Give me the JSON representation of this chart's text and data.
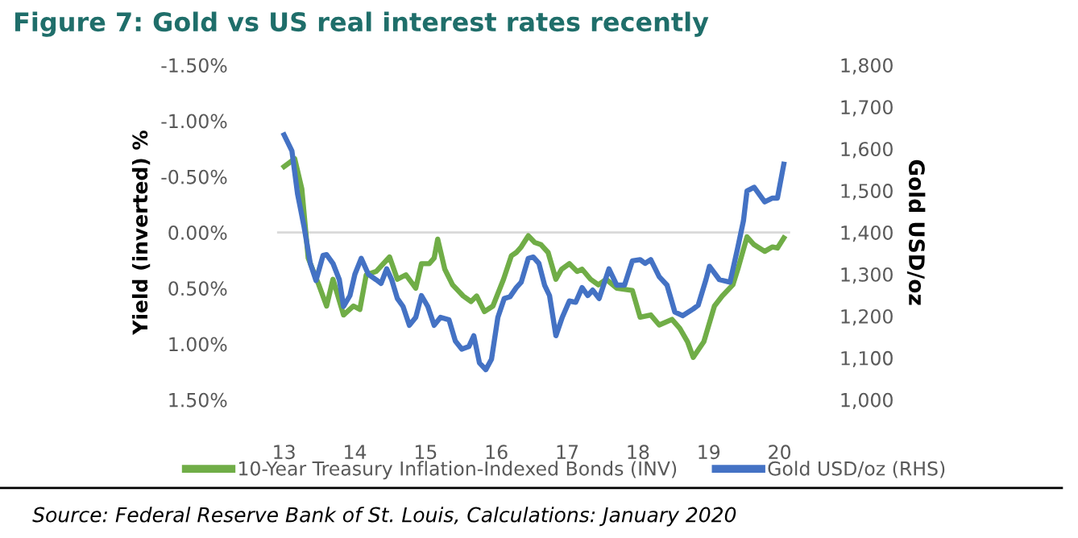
{
  "chart_data": {
    "type": "line",
    "title": "Figure 7: Gold vs US real interest rates recently",
    "ylabel": "Yield (inverted) %",
    "y2label": "Gold USD/oz",
    "annotations": [
      "Source: Federal Reserve Bank of St. Louis, Calculations: January 2020"
    ],
    "series": [
      {
        "name": "10-Year Treasury Inflation-Indexed Bonds (INV)",
        "color": "#70ad47",
        "x": [
          13.0,
          13.15,
          13.25,
          13.34,
          13.49,
          13.6,
          13.69,
          13.84,
          13.98,
          14.07,
          14.16,
          14.3,
          14.49,
          14.6,
          14.72,
          14.86,
          14.94,
          15.05,
          15.12,
          15.17,
          15.27,
          15.38,
          15.53,
          15.64,
          15.72,
          15.83,
          15.95,
          16.1,
          16.21,
          16.28,
          16.35,
          16.45,
          16.54,
          16.63,
          16.73,
          16.84,
          16.92,
          17.03,
          17.14,
          17.21,
          17.33,
          17.44,
          17.55,
          17.7,
          17.92,
          18.03,
          18.18,
          18.3,
          18.48,
          18.59,
          18.7,
          18.78,
          18.93,
          19.08,
          19.19,
          19.34,
          19.41,
          19.54,
          19.64,
          19.79,
          19.9,
          19.97,
          20.06
        ],
        "values": [
          -0.59,
          -0.66,
          -0.39,
          0.23,
          0.47,
          0.66,
          0.42,
          0.74,
          0.66,
          0.69,
          0.38,
          0.35,
          0.22,
          0.42,
          0.38,
          0.5,
          0.28,
          0.28,
          0.23,
          0.06,
          0.33,
          0.47,
          0.57,
          0.62,
          0.57,
          0.71,
          0.66,
          0.42,
          0.21,
          0.18,
          0.13,
          0.03,
          0.09,
          0.11,
          0.18,
          0.42,
          0.33,
          0.28,
          0.35,
          0.33,
          0.42,
          0.47,
          0.42,
          0.5,
          0.52,
          0.76,
          0.74,
          0.83,
          0.78,
          0.86,
          0.98,
          1.12,
          0.98,
          0.66,
          0.57,
          0.47,
          0.33,
          0.04,
          0.11,
          0.17,
          0.13,
          0.14,
          0.05
        ]
      },
      {
        "name": "Gold USD/oz (RHS)",
        "color": "#4472c4",
        "axis": "y2",
        "x": [
          13.0,
          13.11,
          13.19,
          13.28,
          13.37,
          13.45,
          13.55,
          13.6,
          13.69,
          13.78,
          13.84,
          13.93,
          14.0,
          14.09,
          14.19,
          14.3,
          14.37,
          14.45,
          14.52,
          14.6,
          14.68,
          14.77,
          14.86,
          14.94,
          15.03,
          15.12,
          15.21,
          15.33,
          15.42,
          15.51,
          15.61,
          15.68,
          15.76,
          15.85,
          15.93,
          16.02,
          16.11,
          16.19,
          16.28,
          16.35,
          16.45,
          16.52,
          16.6,
          16.68,
          16.75,
          16.84,
          16.93,
          17.03,
          17.12,
          17.21,
          17.29,
          17.36,
          17.45,
          17.59,
          17.7,
          17.81,
          17.92,
          18.03,
          18.1,
          18.18,
          18.3,
          18.41,
          18.52,
          18.63,
          18.78,
          18.85,
          18.96,
          19.01,
          19.15,
          19.3,
          19.41,
          19.49,
          19.54,
          19.64,
          19.79,
          19.9,
          19.97,
          20.06
        ],
        "values": [
          1633,
          1595,
          1492,
          1415,
          1326,
          1285,
          1345,
          1347,
          1326,
          1287,
          1223,
          1249,
          1300,
          1338,
          1300,
          1287,
          1278,
          1313,
          1287,
          1242,
          1223,
          1178,
          1197,
          1249,
          1223,
          1178,
          1197,
          1191,
          1140,
          1121,
          1127,
          1153,
          1088,
          1072,
          1097,
          1197,
          1242,
          1246,
          1268,
          1281,
          1338,
          1341,
          1326,
          1274,
          1249,
          1153,
          1197,
          1236,
          1233,
          1268,
          1249,
          1262,
          1242,
          1313,
          1274,
          1274,
          1332,
          1335,
          1326,
          1335,
          1294,
          1274,
          1210,
          1201,
          1217,
          1226,
          1287,
          1319,
          1287,
          1281,
          1364,
          1428,
          1499,
          1508,
          1473,
          1482,
          1482,
          1563
        ]
      }
    ],
    "xlim": [
      12.9,
      20.15
    ],
    "xticks": [
      13,
      14,
      15,
      16,
      17,
      18,
      19,
      20
    ],
    "ylim": [
      1.5,
      -1.5
    ],
    "yticks": [
      {
        "value": -1.5,
        "label": "-1.50%"
      },
      {
        "value": -1.0,
        "label": "-1.00%"
      },
      {
        "value": -0.5,
        "label": "-0.50%"
      },
      {
        "value": 0.0,
        "label": "0.00%"
      },
      {
        "value": 0.5,
        "label": "0.50%"
      },
      {
        "value": 1.0,
        "label": "1.00%"
      },
      {
        "value": 1.5,
        "label": "1.50%"
      }
    ],
    "y2lim": [
      1000,
      1800
    ],
    "y2ticks": [
      {
        "value": 1000,
        "label": "1,000"
      },
      {
        "value": 1100,
        "label": "1,100"
      },
      {
        "value": 1200,
        "label": "1,200"
      },
      {
        "value": 1300,
        "label": "1,300"
      },
      {
        "value": 1400,
        "label": "1,400"
      },
      {
        "value": 1500,
        "label": "1,500"
      },
      {
        "value": 1600,
        "label": "1,600"
      },
      {
        "value": 1700,
        "label": "1,700"
      },
      {
        "value": 1800,
        "label": "1,800"
      }
    ],
    "ref_lines": [
      {
        "axis": "y",
        "value": 0.0,
        "label": null,
        "color": "#d9d9d9"
      }
    ],
    "grid": false,
    "legend": "bottom",
    "marker": "none",
    "line_style": "solid"
  }
}
